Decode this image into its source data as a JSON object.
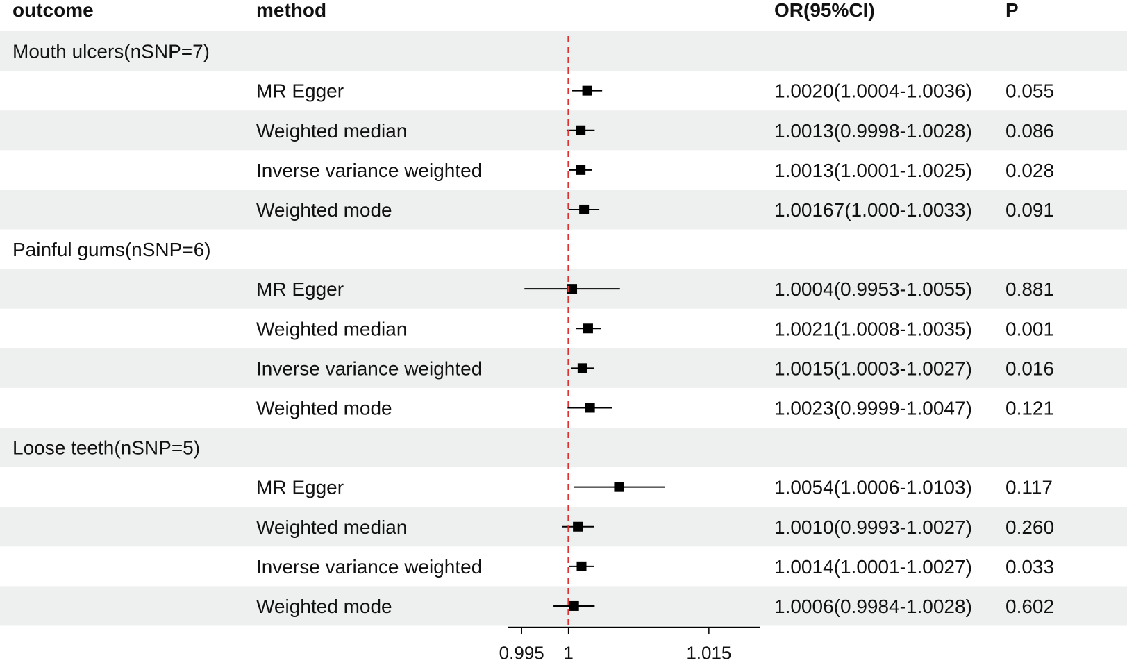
{
  "headers": {
    "outcome": "outcome",
    "method": "method",
    "or": "OR(95%CI)",
    "p": "P"
  },
  "colors": {
    "stripe": "#eef0ef",
    "ref_line": "#e03030",
    "point": "#000000"
  },
  "chart_data": {
    "type": "forest",
    "reference_value": 1,
    "xlim": [
      0.9935,
      1.0205
    ],
    "x_ticks": [
      0.995,
      1,
      1.015
    ],
    "x_tick_labels": [
      "0.995",
      "1",
      "1.015"
    ],
    "groups": [
      {
        "outcome": "Mouth ulcers(nSNP=7)",
        "rows": [
          {
            "method": "MR Egger",
            "or": 1.002,
            "lo": 1.0004,
            "hi": 1.0036,
            "or_text": "1.0020(1.0004-1.0036)",
            "p": "0.055"
          },
          {
            "method": "Weighted median",
            "or": 1.0013,
            "lo": 0.9998,
            "hi": 1.0028,
            "or_text": "1.0013(0.9998-1.0028)",
            "p": "0.086"
          },
          {
            "method": "Inverse variance weighted",
            "or": 1.0013,
            "lo": 1.0001,
            "hi": 1.0025,
            "or_text": "1.0013(1.0001-1.0025)",
            "p": "0.028"
          },
          {
            "method": "Weighted mode",
            "or": 1.00167,
            "lo": 1.0,
            "hi": 1.0033,
            "or_text": "1.00167(1.000-1.0033)",
            "p": "0.091"
          }
        ]
      },
      {
        "outcome": "Painful gums(nSNP=6)",
        "rows": [
          {
            "method": "MR Egger",
            "or": 1.0004,
            "lo": 0.9953,
            "hi": 1.0055,
            "or_text": "1.0004(0.9953-1.0055)",
            "p": "0.881"
          },
          {
            "method": "Weighted median",
            "or": 1.0021,
            "lo": 1.0008,
            "hi": 1.0035,
            "or_text": "1.0021(1.0008-1.0035)",
            "p": "0.001"
          },
          {
            "method": "Inverse variance weighted",
            "or": 1.0015,
            "lo": 1.0003,
            "hi": 1.0027,
            "or_text": "1.0015(1.0003-1.0027)",
            "p": "0.016"
          },
          {
            "method": "Weighted mode",
            "or": 1.0023,
            "lo": 0.9999,
            "hi": 1.0047,
            "or_text": "1.0023(0.9999-1.0047)",
            "p": "0.121"
          }
        ]
      },
      {
        "outcome": "Loose teeth(nSNP=5)",
        "rows": [
          {
            "method": "MR Egger",
            "or": 1.0054,
            "lo": 1.0006,
            "hi": 1.0103,
            "or_text": "1.0054(1.0006-1.0103)",
            "p": "0.117"
          },
          {
            "method": "Weighted median",
            "or": 1.001,
            "lo": 0.9993,
            "hi": 1.0027,
            "or_text": "1.0010(0.9993-1.0027)",
            "p": "0.260"
          },
          {
            "method": "Inverse variance weighted",
            "or": 1.0014,
            "lo": 1.0001,
            "hi": 1.0027,
            "or_text": "1.0014(1.0001-1.0027)",
            "p": "0.033"
          },
          {
            "method": "Weighted mode",
            "or": 1.0006,
            "lo": 0.9984,
            "hi": 1.0028,
            "or_text": "1.0006(0.9984-1.0028)",
            "p": "0.602"
          }
        ]
      }
    ]
  }
}
